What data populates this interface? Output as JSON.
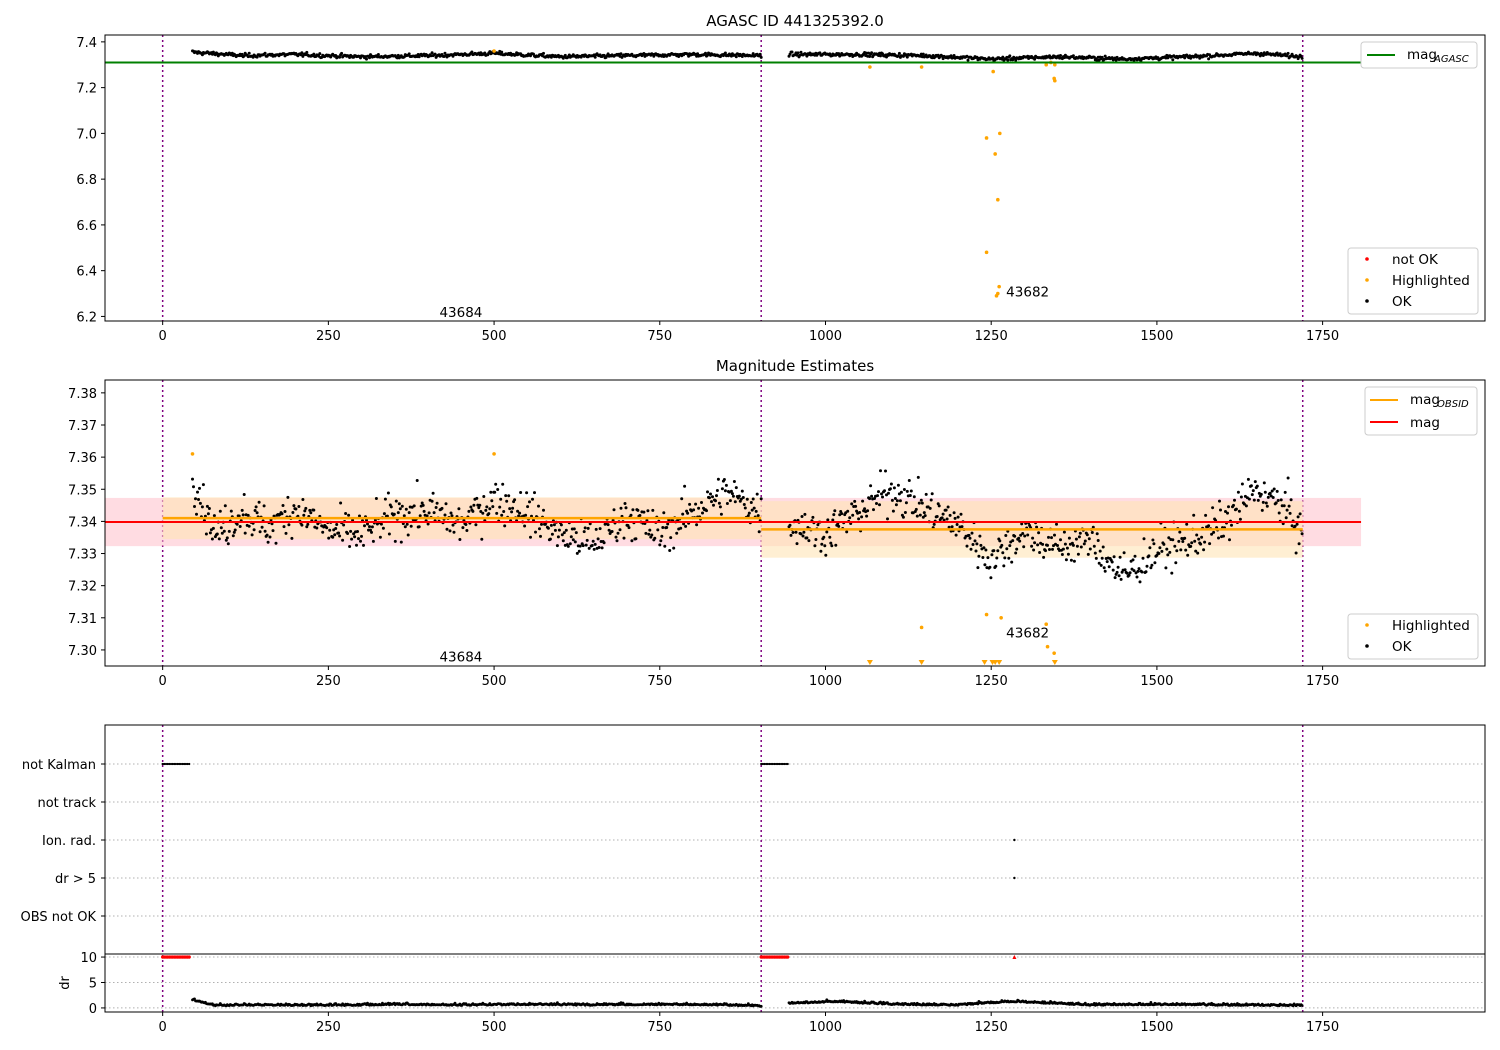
{
  "colors": {
    "ok": "#000000",
    "highlighted": "#ffa500",
    "not_ok": "#ff0000",
    "mag_agasc": "#008000",
    "mag_obsid": "#ffa500",
    "mag": "#ff0000",
    "obs_boundary": "#800080",
    "band_mag": "#ffc0cb",
    "band_obsid": "#ffe4b5"
  },
  "chart_data": [
    {
      "type": "scatter",
      "title": "AGASC ID 441325392.0",
      "xlim": [
        -87,
        1995
      ],
      "ylim": [
        6.18,
        7.43
      ],
      "xticks": [
        "0",
        "250",
        "500",
        "750",
        "1000",
        "1250",
        "1500",
        "1750"
      ],
      "yticks": [
        "6.2",
        "6.4",
        "6.6",
        "6.8",
        "7.0",
        "7.2",
        "7.4"
      ],
      "grid": false,
      "legend_lines": {
        "position": "top-right",
        "entries": [
          {
            "label": "mag",
            "sub": "AGASC",
            "color": "#008000"
          }
        ]
      },
      "legend_points": {
        "position": "bottom-right",
        "entries": [
          "not OK",
          "Highlighted",
          "OK"
        ]
      },
      "obs_boundaries": [
        0,
        903,
        1720
      ],
      "obsid_labels": [
        {
          "text": "43684",
          "x": 450,
          "y": 6.22
        },
        {
          "text": "43682",
          "x": 1305,
          "y": 6.31
        }
      ],
      "mag_agasc": {
        "value": 7.31,
        "x_range": [
          -87,
          1808
        ]
      },
      "ok_series": [
        {
          "x": [
            45,
            120,
            200,
            300,
            400,
            500,
            600,
            700,
            800,
            903
          ],
          "y": [
            7.355,
            7.34,
            7.345,
            7.335,
            7.34,
            7.35,
            7.335,
            7.34,
            7.345,
            7.34
          ]
        },
        {
          "x": [
            945,
            1050,
            1150,
            1250,
            1350,
            1450,
            1550,
            1650,
            1720
          ],
          "y": [
            7.345,
            7.345,
            7.34,
            7.325,
            7.335,
            7.325,
            7.335,
            7.35,
            7.335
          ]
        }
      ],
      "highlighted_points": [
        {
          "x": 1067,
          "y": 7.29
        },
        {
          "x": 1145,
          "y": 7.29
        },
        {
          "x": 1243,
          "y": 6.98
        },
        {
          "x": 1243,
          "y": 6.48
        },
        {
          "x": 1253,
          "y": 7.27
        },
        {
          "x": 1256,
          "y": 6.91
        },
        {
          "x": 1260,
          "y": 6.71
        },
        {
          "x": 1263,
          "y": 7.0
        },
        {
          "x": 1258,
          "y": 6.29
        },
        {
          "x": 1262,
          "y": 6.33
        },
        {
          "x": 1260,
          "y": 6.3
        },
        {
          "x": 1333,
          "y": 7.3
        },
        {
          "x": 1340,
          "y": 7.31
        },
        {
          "x": 1345,
          "y": 7.24
        },
        {
          "x": 1346,
          "y": 7.23
        },
        {
          "x": 1346,
          "y": 7.3
        },
        {
          "x": 500,
          "y": 7.36
        }
      ]
    },
    {
      "type": "scatter",
      "title": "Magnitude Estimates",
      "xlim": [
        -87,
        1995
      ],
      "ylim": [
        7.295,
        7.384
      ],
      "xticks": [
        "0",
        "250",
        "500",
        "750",
        "1000",
        "1250",
        "1500",
        "1750"
      ],
      "yticks": [
        "7.30",
        "7.31",
        "7.32",
        "7.33",
        "7.34",
        "7.35",
        "7.36",
        "7.37",
        "7.38"
      ],
      "grid": false,
      "legend_lines": {
        "position": "top-right",
        "entries": [
          {
            "label": "mag",
            "sub": "OBSID",
            "color": "#ffa500"
          },
          {
            "label": "mag",
            "sub": "",
            "color": "#ff0000"
          }
        ]
      },
      "legend_points": {
        "position": "bottom-right",
        "entries": [
          "Highlighted",
          "OK"
        ]
      },
      "obs_boundaries": [
        0,
        903,
        1720
      ],
      "obsid_labels": [
        {
          "text": "43684",
          "x": 450,
          "y": 7.298
        },
        {
          "text": "43682",
          "x": 1305,
          "y": 7.3055
        }
      ],
      "mag": {
        "value": 7.3398,
        "band": [
          7.3323,
          7.3473
        ],
        "x_range": [
          -87,
          1808
        ]
      },
      "mag_obsid": [
        {
          "x_range": [
            0,
            903
          ],
          "value": 7.341,
          "band": [
            7.3345,
            7.3475
          ]
        },
        {
          "x_range": [
            903,
            1720
          ],
          "value": 7.3375,
          "band": [
            7.3287,
            7.3463
          ]
        }
      ],
      "ok_series": [
        {
          "x": [
            45,
            80,
            120,
            160,
            200,
            250,
            300,
            350,
            400,
            450,
            500,
            550,
            600,
            650,
            700,
            750,
            800,
            850,
            903
          ],
          "y": [
            7.354,
            7.336,
            7.343,
            7.338,
            7.344,
            7.337,
            7.336,
            7.342,
            7.343,
            7.339,
            7.347,
            7.343,
            7.336,
            7.333,
            7.342,
            7.336,
            7.343,
            7.349,
            7.343
          ]
        },
        {
          "x": [
            945,
            1000,
            1050,
            1100,
            1150,
            1200,
            1250,
            1300,
            1350,
            1400,
            1450,
            1500,
            1550,
            1600,
            1650,
            1700,
            1720
          ],
          "y": [
            7.34,
            7.336,
            7.343,
            7.35,
            7.344,
            7.339,
            7.328,
            7.337,
            7.332,
            7.334,
            7.323,
            7.331,
            7.334,
            7.339,
            7.35,
            7.343,
            7.335
          ]
        }
      ],
      "highlighted_points": [
        {
          "x": 45,
          "y": 7.361
        },
        {
          "x": 500,
          "y": 7.361
        },
        {
          "x": 1145,
          "y": 7.307
        },
        {
          "x": 1243,
          "y": 7.311
        },
        {
          "x": 1265,
          "y": 7.31
        },
        {
          "x": 1333,
          "y": 7.308
        },
        {
          "x": 1335,
          "y": 7.301
        },
        {
          "x": 1345,
          "y": 7.299
        }
      ],
      "clipped_below_x": [
        1067,
        1145,
        1240,
        1252,
        1256,
        1262,
        1346
      ]
    },
    {
      "type": "scatter",
      "title": "",
      "xlim": [
        -87,
        1995
      ],
      "xticks": [
        "0",
        "250",
        "500",
        "750",
        "1000",
        "1250",
        "1500",
        "1750"
      ],
      "grid": true,
      "obs_boundaries": [
        0,
        903,
        1720
      ],
      "flag_rows": [
        "not Kalman",
        "not track",
        "Ion. rad.",
        "dr > 5",
        "OBS not OK"
      ],
      "flags": [
        {
          "row": "not Kalman",
          "segments": [
            [
              0,
              42
            ],
            [
              903,
              945
            ]
          ]
        },
        {
          "row": "Ion. rad.",
          "points": [
            1285
          ]
        },
        {
          "row": "dr > 5",
          "points": [
            1285
          ]
        }
      ],
      "dr": {
        "ylabel": "dr",
        "yticks": [
          "0",
          "5",
          "10"
        ],
        "ylim": [
          -0.8,
          10.6
        ],
        "clipped_at_10": [
          [
            0,
            42
          ],
          [
            903,
            945
          ]
        ],
        "clipped_points": [
          1285
        ],
        "series": [
          {
            "x": [
              45,
              80,
              150,
              250,
              350,
              450,
              550,
              650,
              750,
              850,
              903
            ],
            "y": [
              1.5,
              0.4,
              0.5,
              0.4,
              0.6,
              0.5,
              0.6,
              0.5,
              0.6,
              0.5,
              0.3
            ]
          },
          {
            "x": [
              945,
              1010,
              1100,
              1200,
              1280,
              1400,
              1500,
              1600,
              1720
            ],
            "y": [
              0.8,
              1.2,
              0.6,
              0.5,
              1.2,
              0.5,
              0.6,
              0.5,
              0.4
            ]
          }
        ]
      }
    }
  ]
}
